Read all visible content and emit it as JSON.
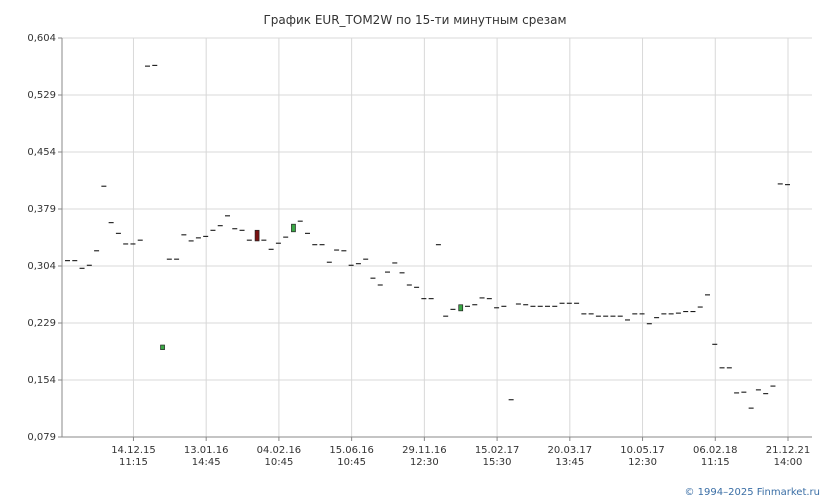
{
  "chart_data": {
    "type": "candlestick",
    "title": "График EUR_TOM2W по 15-ти минутным срезам",
    "footer": "© 1994–2025 Finmarket.ru",
    "categories": [
      null,
      null,
      null,
      null,
      null,
      null,
      null,
      null,
      null,
      "14.12.15\n11:15",
      null,
      null,
      null,
      null,
      null,
      null,
      null,
      null,
      null,
      "13.01.16\n14:45",
      null,
      null,
      null,
      null,
      null,
      null,
      null,
      null,
      null,
      "04.02.16\n10:45",
      null,
      null,
      null,
      null,
      null,
      null,
      null,
      null,
      null,
      "15.06.16\n10:45",
      null,
      null,
      null,
      null,
      null,
      null,
      null,
      null,
      null,
      "29.11.16\n12:30",
      null,
      null,
      null,
      null,
      null,
      null,
      null,
      null,
      null,
      "15.02.17\n15:30",
      null,
      null,
      null,
      null,
      null,
      null,
      null,
      null,
      null,
      "20.03.17\n13:45",
      null,
      null,
      null,
      null,
      null,
      null,
      null,
      null,
      null,
      "10.05.17\n12:30",
      null,
      null,
      null,
      null,
      null,
      null,
      null,
      null,
      null,
      "06.02.18\n11:15",
      null,
      null,
      null,
      null,
      null,
      null,
      null,
      null,
      null,
      "21.12.21\n14:00"
    ],
    "open": [
      0.311,
      0.311,
      0.301,
      0.305,
      0.324,
      0.409,
      0.361,
      0.347,
      0.333,
      0.333,
      0.338,
      0.567,
      0.568,
      0.194,
      0.313,
      0.313,
      0.345,
      0.337,
      0.341,
      0.343,
      0.351,
      0.357,
      0.37,
      0.353,
      0.351,
      0.338,
      0.351,
      0.338,
      0.326,
      0.334,
      0.342,
      0.349,
      0.363,
      0.347,
      0.332,
      0.332,
      0.309,
      0.325,
      0.324,
      0.305,
      0.307,
      0.313,
      0.288,
      0.279,
      0.296,
      0.308,
      0.295,
      0.279,
      0.276,
      0.261,
      0.261,
      0.332,
      0.238,
      0.247,
      0.245,
      0.251,
      0.253,
      0.262,
      0.261,
      0.249,
      0.251,
      0.128,
      0.254,
      0.253,
      0.251,
      0.251,
      0.251,
      0.251,
      0.255,
      0.255,
      0.255,
      0.241,
      0.241,
      0.238,
      0.238,
      0.238,
      0.238,
      0.233,
      0.241,
      0.241,
      0.228,
      0.236,
      0.241,
      0.241,
      0.242,
      0.244,
      0.244,
      0.25,
      0.266,
      0.201,
      0.17,
      0.17,
      0.137,
      0.138,
      0.117,
      0.141,
      0.136,
      0.146,
      0.412,
      0.411
    ],
    "close": [
      0.311,
      0.311,
      0.301,
      0.305,
      0.324,
      0.409,
      0.361,
      0.347,
      0.333,
      0.333,
      0.338,
      0.567,
      0.568,
      0.2,
      0.313,
      0.313,
      0.345,
      0.337,
      0.341,
      0.343,
      0.351,
      0.357,
      0.37,
      0.353,
      0.351,
      0.338,
      0.337,
      0.338,
      0.326,
      0.334,
      0.342,
      0.359,
      0.363,
      0.347,
      0.332,
      0.332,
      0.309,
      0.325,
      0.324,
      0.305,
      0.307,
      0.313,
      0.288,
      0.279,
      0.296,
      0.308,
      0.295,
      0.279,
      0.276,
      0.261,
      0.261,
      0.332,
      0.238,
      0.247,
      0.253,
      0.251,
      0.253,
      0.262,
      0.261,
      0.249,
      0.251,
      0.128,
      0.254,
      0.253,
      0.251,
      0.251,
      0.251,
      0.251,
      0.255,
      0.255,
      0.255,
      0.241,
      0.241,
      0.238,
      0.238,
      0.238,
      0.238,
      0.233,
      0.241,
      0.241,
      0.228,
      0.236,
      0.241,
      0.241,
      0.242,
      0.244,
      0.244,
      0.25,
      0.266,
      0.201,
      0.17,
      0.17,
      0.137,
      0.138,
      0.117,
      0.141,
      0.136,
      0.146,
      0.412,
      0.411
    ],
    "up_color": "#3aa845",
    "down_color": "#7a1010",
    "flat_color": "#000000",
    "ylim": [
      0.079,
      0.604
    ],
    "yticks": [
      {
        "value": 0.079,
        "label": "0,079"
      },
      {
        "value": 0.154,
        "label": "0,154"
      },
      {
        "value": 0.229,
        "label": "0,229"
      },
      {
        "value": 0.304,
        "label": "0,304"
      },
      {
        "value": 0.379,
        "label": "0,379"
      },
      {
        "value": 0.454,
        "label": "0,454"
      },
      {
        "value": 0.529,
        "label": "0,529"
      },
      {
        "value": 0.604,
        "label": "0,604"
      }
    ],
    "grid": true
  }
}
